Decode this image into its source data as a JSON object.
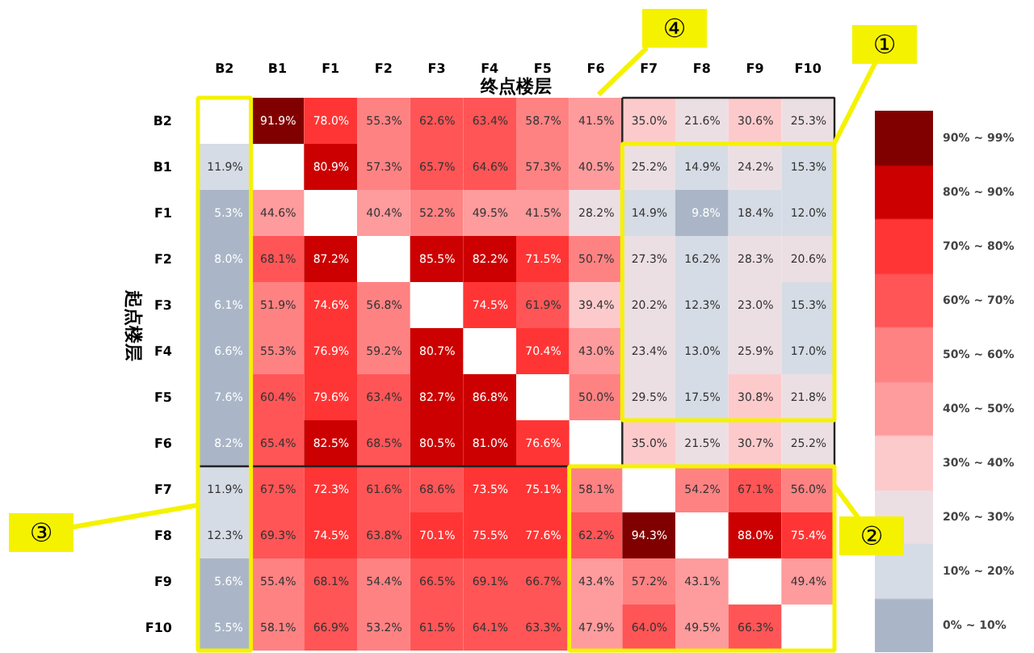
{
  "chart_data": {
    "type": "heatmap",
    "xlabel": "终点楼层",
    "ylabel": "起点楼层",
    "categories": [
      "B2",
      "B1",
      "F1",
      "F2",
      "F3",
      "F4",
      "F5",
      "F6",
      "F7",
      "F8",
      "F9",
      "F10"
    ],
    "y_categories": [
      "B2",
      "B1",
      "F1",
      "F2",
      "F3",
      "F4",
      "F5",
      "F6",
      "F7",
      "F8",
      "F9",
      "F10"
    ],
    "cells": [
      [
        null,
        91.9,
        78.0,
        55.3,
        62.6,
        63.4,
        58.7,
        41.5,
        35.0,
        21.6,
        30.6,
        25.3
      ],
      [
        11.9,
        null,
        80.9,
        57.3,
        65.7,
        64.6,
        57.3,
        40.5,
        25.2,
        14.9,
        24.2,
        15.3
      ],
      [
        5.3,
        44.6,
        null,
        40.4,
        52.2,
        49.5,
        41.5,
        28.2,
        14.9,
        9.8,
        18.4,
        12.0
      ],
      [
        8.0,
        68.1,
        87.2,
        null,
        85.5,
        82.2,
        71.5,
        50.7,
        27.3,
        16.2,
        28.3,
        20.6
      ],
      [
        6.1,
        51.9,
        74.6,
        56.8,
        null,
        74.5,
        61.9,
        39.4,
        20.2,
        12.3,
        23.0,
        15.3
      ],
      [
        6.6,
        55.3,
        76.9,
        59.2,
        80.7,
        null,
        70.4,
        43.0,
        23.4,
        13.0,
        25.9,
        17.0
      ],
      [
        7.6,
        60.4,
        79.6,
        63.4,
        82.7,
        86.8,
        null,
        50.0,
        29.5,
        17.5,
        30.8,
        21.8
      ],
      [
        8.2,
        65.4,
        82.5,
        68.5,
        80.5,
        81.0,
        76.6,
        null,
        35.0,
        21.5,
        30.7,
        25.2
      ],
      [
        11.9,
        67.5,
        72.3,
        61.6,
        68.6,
        73.5,
        75.1,
        58.1,
        null,
        54.2,
        67.1,
        56.0
      ],
      [
        12.3,
        69.3,
        74.5,
        63.8,
        70.1,
        75.5,
        77.6,
        62.2,
        94.3,
        null,
        88.0,
        75.4
      ],
      [
        5.6,
        55.4,
        68.1,
        54.4,
        66.5,
        69.1,
        66.7,
        43.4,
        57.2,
        43.1,
        null,
        49.4
      ],
      [
        5.5,
        58.1,
        66.9,
        53.2,
        61.5,
        64.1,
        63.3,
        47.9,
        64.0,
        49.5,
        66.3,
        null
      ]
    ],
    "cell_labels": [
      [
        null,
        "91.9%",
        "78.0%",
        "55.3%",
        "62.6%",
        "63.4%",
        "58.7%",
        "41.5%",
        "35.0%",
        "21.6%",
        "30.6%",
        "25.3%"
      ],
      [
        "11.9%",
        null,
        "80.9%",
        "57.3%",
        "65.7%",
        "64.6%",
        "57.3%",
        "40.5%",
        "25.2%",
        "14.9%",
        "24.2%",
        "15.3%"
      ],
      [
        "5.3%",
        "44.6%",
        null,
        "40.4%",
        "52.2%",
        "49.5%",
        "41.5%",
        "28.2%",
        "14.9%",
        "9.8%",
        "18.4%",
        "12.0%"
      ],
      [
        "8.0%",
        "68.1%",
        "87.2%",
        null,
        "85.5%",
        "82.2%",
        "71.5%",
        "50.7%",
        "27.3%",
        "16.2%",
        "28.3%",
        "20.6%"
      ],
      [
        "6.1%",
        "51.9%",
        "74.6%",
        "56.8%",
        null,
        "74.5%",
        "61.9%",
        "39.4%",
        "20.2%",
        "12.3%",
        "23.0%",
        "15.3%"
      ],
      [
        "6.6%",
        "55.3%",
        "76.9%",
        "59.2%",
        "80.7%",
        null,
        "70.4%",
        "43.0%",
        "23.4%",
        "13.0%",
        "25.9%",
        "17.0%"
      ],
      [
        "7.6%",
        "60.4%",
        "79.6%",
        "63.4%",
        "82.7%",
        "86.8%",
        null,
        "50.0%",
        "29.5%",
        "17.5%",
        "30.8%",
        "21.8%"
      ],
      [
        "8.2%",
        "65.4%",
        "82.5%",
        "68.5%",
        "80.5%",
        "81.0%",
        "76.6%",
        null,
        "35.0%",
        "21.5%",
        "30.7%",
        "25.2%"
      ],
      [
        "11.9%",
        "67.5%",
        "72.3%",
        "61.6%",
        "68.6%",
        "73.5%",
        "75.1%",
        "58.1%",
        null,
        "54.2%",
        "67.1%",
        "56.0%"
      ],
      [
        "12.3%",
        "69.3%",
        "74.5%",
        "63.8%",
        "70.1%",
        "75.5%",
        "77.6%",
        "62.2%",
        "94.3%",
        null,
        "88.0%",
        "75.4%"
      ],
      [
        "5.6%",
        "55.4%",
        "68.1%",
        "54.4%",
        "66.5%",
        "69.1%",
        "66.7%",
        "43.4%",
        "57.2%",
        "43.1%",
        null,
        "49.4%"
      ],
      [
        "5.5%",
        "58.1%",
        "66.9%",
        "53.2%",
        "61.5%",
        "64.1%",
        "63.3%",
        "47.9%",
        "64.0%",
        "49.5%",
        "66.3%",
        null
      ]
    ],
    "clim": [
      0,
      100
    ],
    "cticks": [
      {
        "value": 5,
        "label": "0%  ~  10%"
      },
      {
        "value": 15,
        "label": "10%  ~  20%"
      },
      {
        "value": 25,
        "label": "20%  ~  30%"
      },
      {
        "value": 35,
        "label": "30%  ~  40%"
      },
      {
        "value": 45,
        "label": "40%  ~  50%"
      },
      {
        "value": 55,
        "label": "50%  ~  60%"
      },
      {
        "value": 65,
        "label": "60%  ~  70%"
      },
      {
        "value": 75,
        "label": "70%  ~  80%"
      },
      {
        "value": 85,
        "label": "80%  ~  90%"
      },
      {
        "value": 95,
        "label": "90%  ~  99%"
      }
    ],
    "colors": [
      "#aab6c7",
      "#d6dce5",
      "#ecdfe3",
      "#fdcacc",
      "#fe9b9d",
      "#ff8283",
      "#ff5556",
      "#ff3535",
      "#cc0000",
      "#800000"
    ],
    "annotations": [
      "①",
      "②",
      "③",
      "④"
    ]
  }
}
